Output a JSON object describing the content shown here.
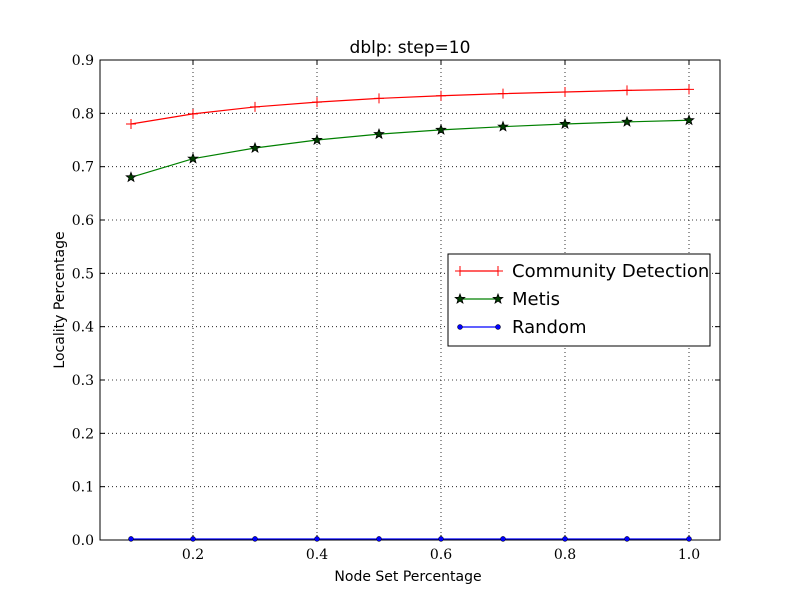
{
  "chart_data": {
    "type": "line",
    "title": "dblp: step=10",
    "xlabel": "Node Set Percentage",
    "ylabel": "Locality Percentage",
    "xlim": [
      0.05,
      1.05
    ],
    "ylim": [
      0.0,
      0.9
    ],
    "xticks": [
      0.2,
      0.4,
      0.6,
      0.8,
      1.0
    ],
    "xtick_labels": [
      "0.2",
      "0.4",
      "0.6",
      "0.8",
      "1.0"
    ],
    "yticks": [
      0.0,
      0.1,
      0.2,
      0.3,
      0.4,
      0.5,
      0.6,
      0.7,
      0.8,
      0.9
    ],
    "ytick_labels": [
      "0.0",
      "0.1",
      "0.2",
      "0.3",
      "0.4",
      "0.5",
      "0.6",
      "0.7",
      "0.8",
      "0.9"
    ],
    "grid": true,
    "legend_position": "center-right",
    "x": [
      0.1,
      0.2,
      0.3,
      0.4,
      0.5,
      0.6,
      0.7,
      0.8,
      0.9,
      1.0
    ],
    "series": [
      {
        "name": "Community Detection",
        "color": "#ff0000",
        "marker": "plus",
        "values": [
          0.78,
          0.799,
          0.812,
          0.821,
          0.828,
          0.833,
          0.837,
          0.84,
          0.843,
          0.845
        ]
      },
      {
        "name": "Metis",
        "color": "#008000",
        "marker": "star",
        "values": [
          0.68,
          0.715,
          0.735,
          0.75,
          0.761,
          0.769,
          0.775,
          0.78,
          0.784,
          0.787
        ]
      },
      {
        "name": "Random",
        "color": "#0000ff",
        "marker": "dot",
        "values": [
          0.002,
          0.002,
          0.002,
          0.002,
          0.002,
          0.002,
          0.002,
          0.002,
          0.002,
          0.002
        ]
      }
    ]
  }
}
